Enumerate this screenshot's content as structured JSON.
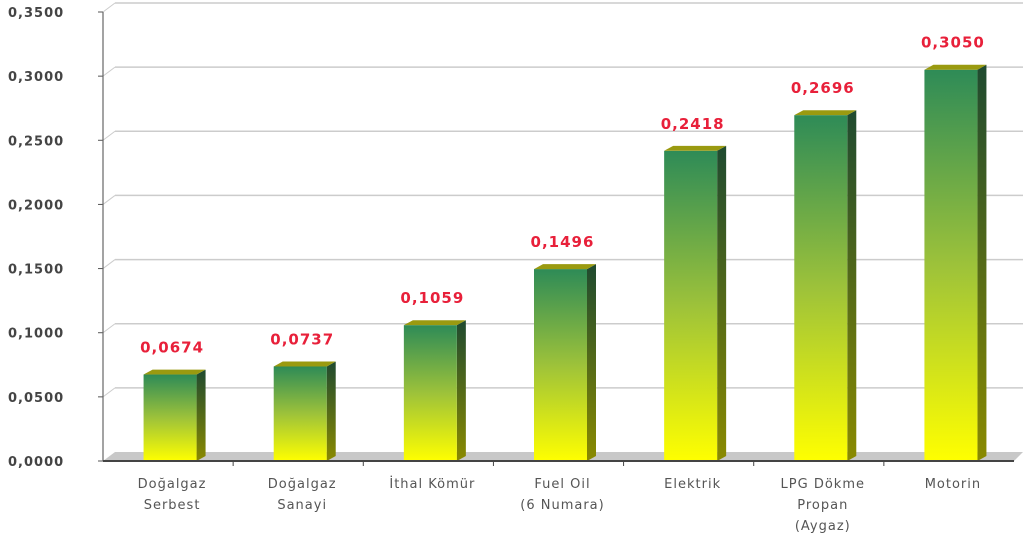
{
  "chart_data": {
    "type": "bar",
    "title": "",
    "xlabel": "",
    "ylabel": "",
    "categories": [
      [
        "Doğalgaz",
        "Serbest"
      ],
      [
        "Doğalgaz",
        "Sanayi"
      ],
      [
        "İthal Kömür"
      ],
      [
        "Fuel Oil",
        "(6 Numara)"
      ],
      [
        "Elektrik"
      ],
      [
        "LPG Dökme",
        "Propan",
        "(Aygaz)"
      ],
      [
        "Motorin"
      ]
    ],
    "values": [
      0.0674,
      0.0737,
      0.1059,
      0.1496,
      0.2418,
      0.2696,
      0.305
    ],
    "value_labels": [
      "0,0674",
      "0,0737",
      "0,1059",
      "0,1496",
      "0,2418",
      "0,2696",
      "0,3050"
    ],
    "ylim": [
      0,
      0.35
    ],
    "yticks": [
      0,
      0.05,
      0.1,
      0.15,
      0.2,
      0.25,
      0.3,
      0.35
    ],
    "ytick_labels": [
      "0,0000",
      "0,0500",
      "0,1000",
      "0,1500",
      "0,2000",
      "0,2500",
      "0,3000",
      "0,3500"
    ],
    "grid": true,
    "legend": "none",
    "colors": {
      "bar_top": "#2e8b57",
      "bar_bottom": "#ffff00",
      "value_label": "#e8203a",
      "grid": "#cccccc",
      "floor": "#c8c8c8"
    }
  }
}
